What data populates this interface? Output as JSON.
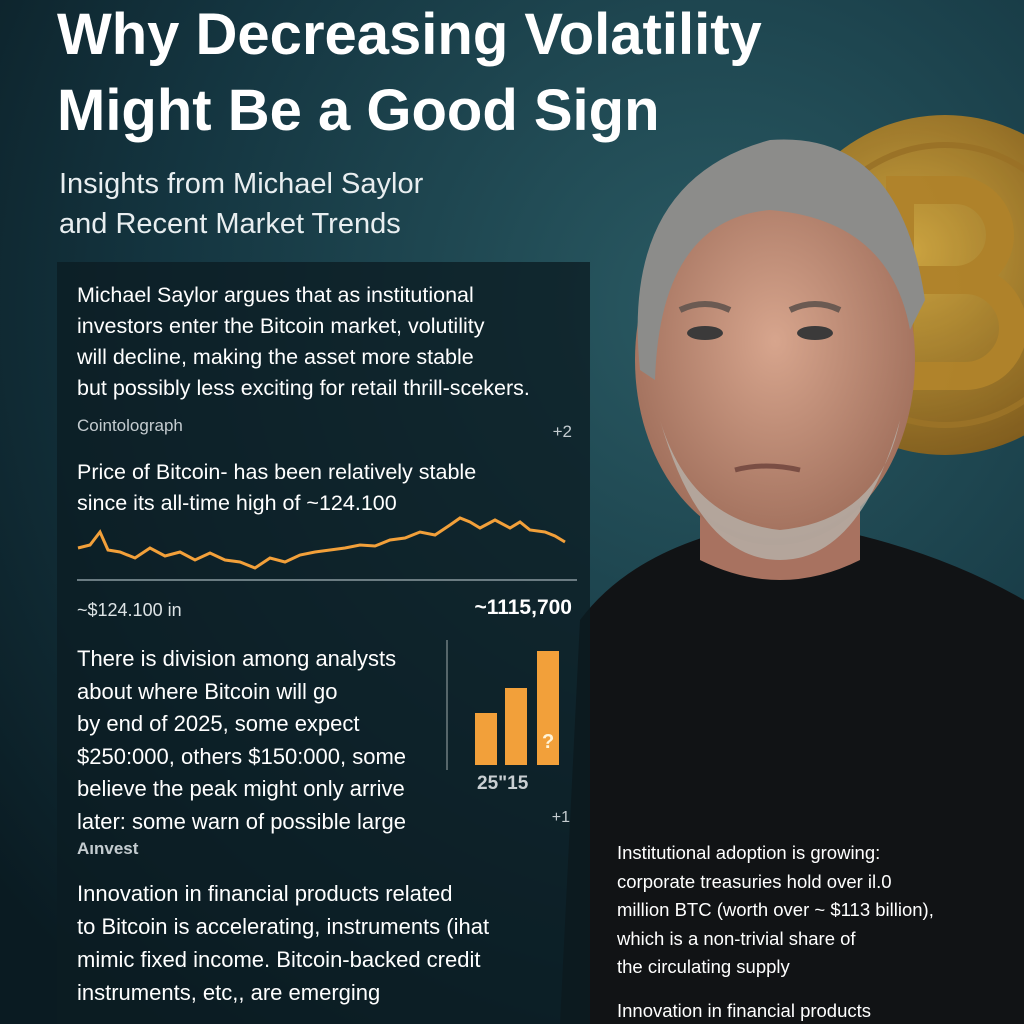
{
  "header": {
    "title": [
      "Why Decreasing Volatility",
      "Might Be a Good Sign"
    ],
    "subtitle": [
      "Insights from Michael Saylor",
      "and Recent Market Trends"
    ]
  },
  "panel": {
    "saylor": {
      "lines": [
        "Michael Saylor argues that as institutional",
        "investors enter the Bitcoin market, volutility",
        "will decline, making the asset more stable",
        "but possibly less exciting for retail thrill-scekers."
      ],
      "source": "Cointolograph",
      "badge": "+2"
    },
    "price": {
      "lines": [
        "Price of Bitcoin- has been relatively stable",
        "since its all-time high of ~124.100"
      ],
      "left_label": "~$124.100 in",
      "right_label": "~1115,700"
    },
    "analysts": {
      "lines": [
        "There is division among analysts",
        "about where Bitcoin will go",
        "by end of 2025, some expect",
        "$250:000, others $150:000, some",
        "believe the peak might only arrive",
        "later: some warn of possible large"
      ],
      "bar_mark": "?",
      "bar_label": "25\"15",
      "badge": "+1",
      "source": "Aınvest"
    },
    "innovation": {
      "lines": [
        "Innovation in financial products related",
        "to Bitcoin is accelerating, instruments (ihat",
        "mimic fixed income. Bitcoin-backed credit",
        "instruments, etc,, are emerging"
      ]
    }
  },
  "side": {
    "adoption": {
      "lines": [
        "Institutional adoption is growing:",
        "corporate treasuries hold over il.0",
        "million BTC (worth over ~ $113 billion),",
        "which is a non-trivial share of",
        "the circulating supply"
      ]
    },
    "innovation": {
      "lines": [
        "Innovation in financial products"
      ]
    }
  }
}
